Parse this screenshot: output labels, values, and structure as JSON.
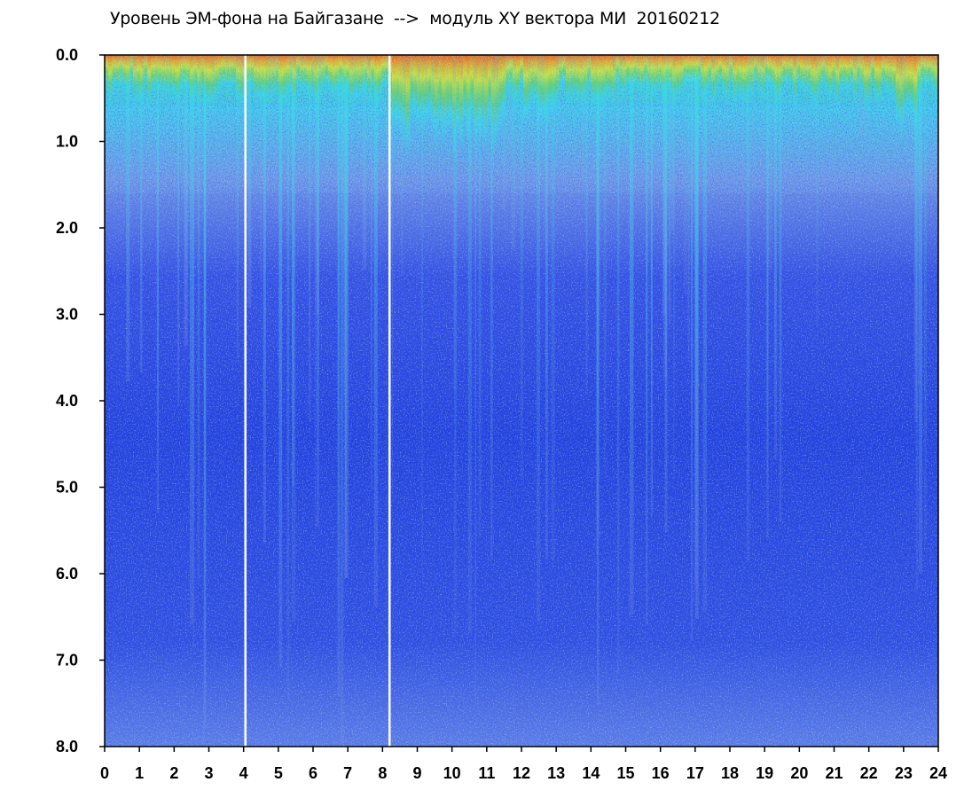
{
  "chart_data": {
    "type": "heatmap",
    "title": "Уровень ЭМ-фона на Байгазане  -->  модуль XY вектора МИ  20160212",
    "xlabel": "",
    "ylabel": "",
    "x_ticks": [
      "0",
      "1",
      "2",
      "3",
      "4",
      "5",
      "6",
      "7",
      "8",
      "9",
      "10",
      "11",
      "12",
      "13",
      "14",
      "15",
      "16",
      "17",
      "18",
      "19",
      "20",
      "21",
      "22",
      "23",
      "24"
    ],
    "y_ticks": [
      "0.0",
      "1.0",
      "2.0",
      "3.0",
      "4.0",
      "5.0",
      "6.0",
      "7.0",
      "8.0"
    ],
    "xlim": [
      0,
      24
    ],
    "ylim": [
      0,
      8
    ],
    "y_inverted": true,
    "grid": false,
    "colorscale": [
      "#0a1fd6",
      "#3a55e8",
      "#7f9ae6",
      "#36dcea",
      "#22b822",
      "#f2e21a",
      "#f04a1a"
    ],
    "gap_hours": [
      4.05,
      8.2
    ]
  }
}
